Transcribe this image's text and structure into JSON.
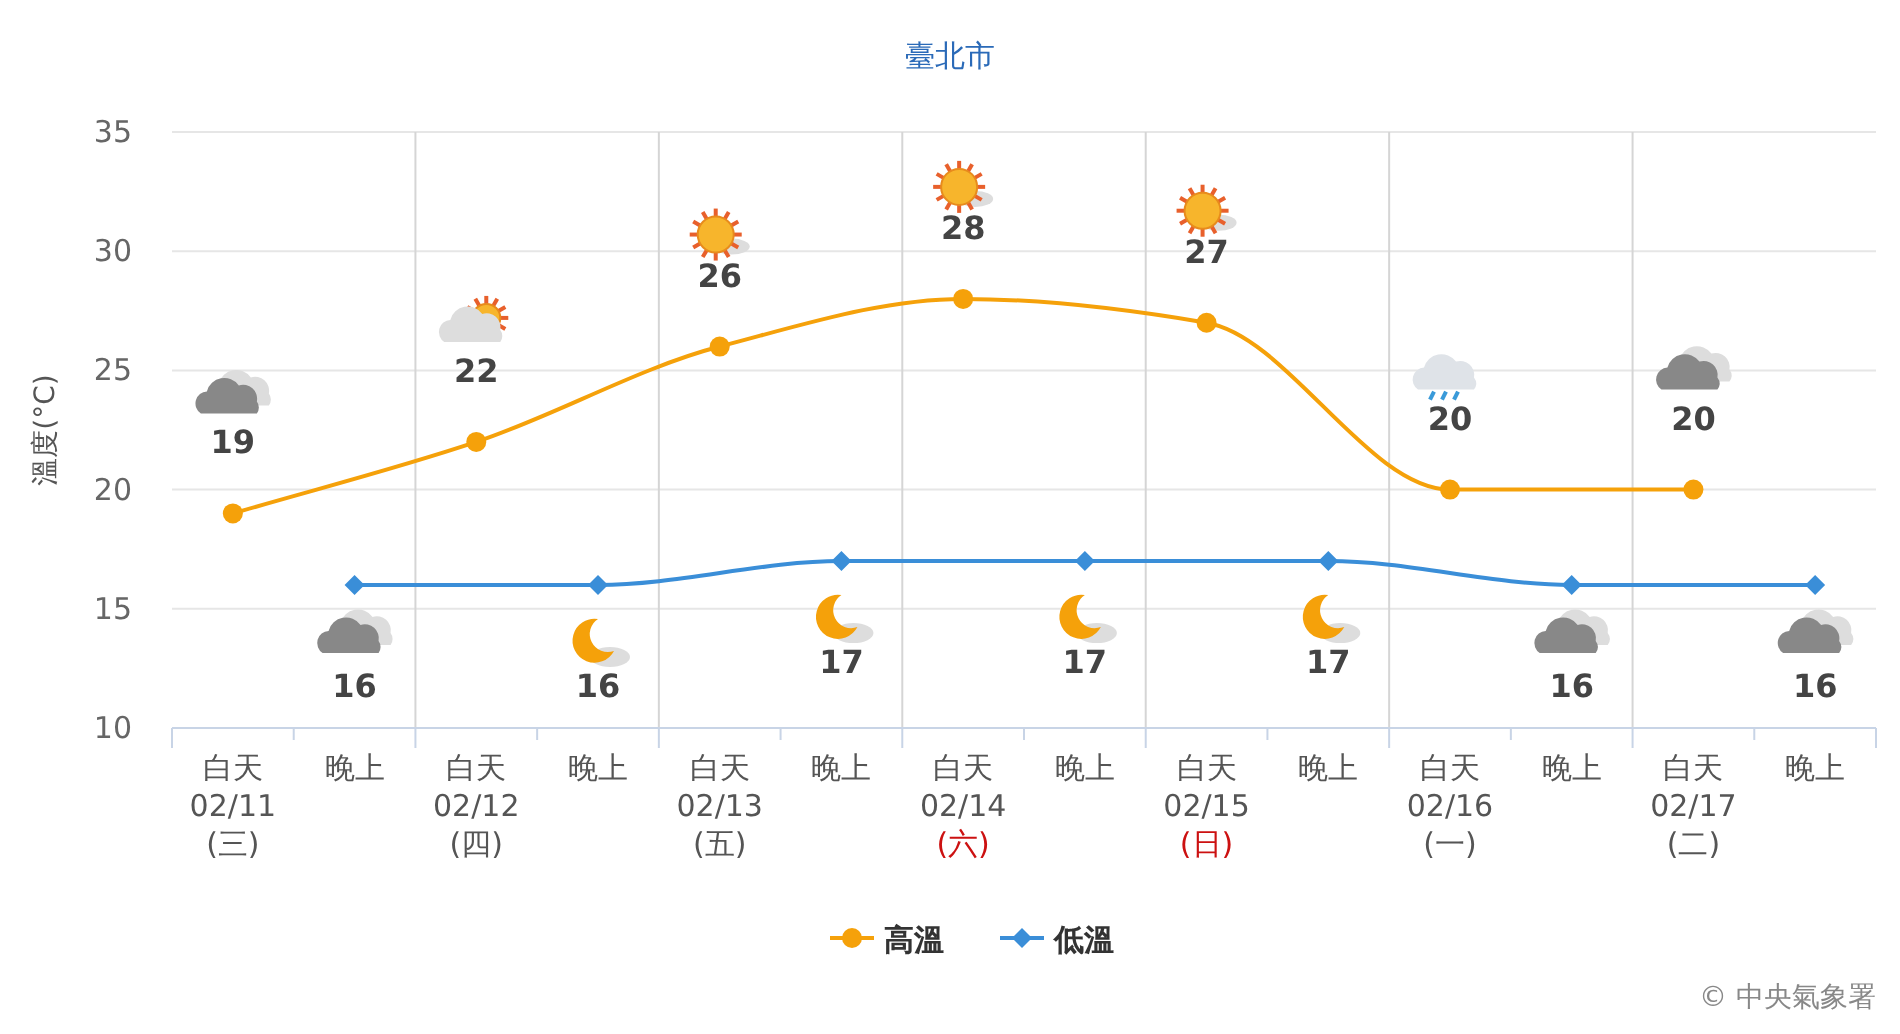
{
  "chart_data": {
    "type": "line",
    "title": "臺北市",
    "ylabel": "溫度(°C)",
    "categories": [
      "白天\n02/11\n(三)",
      "晚上",
      "白天\n02/12\n(四)",
      "晚上",
      "白天\n02/13\n(五)",
      "晚上",
      "白天\n02/14\n(六)",
      "晚上",
      "白天\n02/15\n(日)",
      "晚上",
      "白天\n02/16\n(一)",
      "晚上",
      "白天\n02/17\n(二)",
      "晚上"
    ],
    "series": [
      {
        "name": "高溫",
        "color": "#f5a10a",
        "marker": "circle",
        "values": [
          19,
          null,
          22,
          null,
          26,
          null,
          28,
          null,
          27,
          null,
          20,
          null,
          20,
          null
        ]
      },
      {
        "name": "低溫",
        "color": "#3a8ed8",
        "marker": "diamond",
        "values": [
          null,
          16,
          null,
          16,
          null,
          17,
          null,
          17,
          null,
          17,
          null,
          16,
          null,
          16
        ]
      }
    ],
    "ylim": [
      10,
      35
    ],
    "yticks": [
      10,
      15,
      20,
      25,
      30,
      35
    ],
    "grid": true,
    "legend": "bottom",
    "data_labels": true,
    "annotations": [
      "© 中央氣象署"
    ]
  }
}
